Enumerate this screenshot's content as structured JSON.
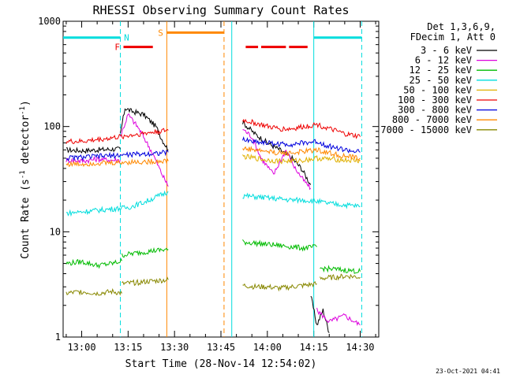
{
  "chart_data": {
    "type": "line",
    "title": "RHESSI Observing Summary Count Rates",
    "xlabel": "Start Time (28-Nov-14 12:54:02)",
    "ylabel_parts": [
      "Count Rate (s",
      "-1",
      " detector",
      "-1",
      ")"
    ],
    "yscale": "log",
    "ylim": [
      1,
      1000
    ],
    "xlim_minutes": [
      -6,
      96
    ],
    "x_ticks": [
      {
        "m": 0,
        "label": "13:00"
      },
      {
        "m": 15,
        "label": "13:15"
      },
      {
        "m": 30,
        "label": "13:30"
      },
      {
        "m": 45,
        "label": "13:45"
      },
      {
        "m": 60,
        "label": "14:00"
      },
      {
        "m": 75,
        "label": "14:15"
      },
      {
        "m": 90,
        "label": "14:30"
      }
    ],
    "y_ticks": [
      {
        "v": 1,
        "label": "1"
      },
      {
        "v": 10,
        "label": "10"
      },
      {
        "v": 100,
        "label": "100"
      },
      {
        "v": 1000,
        "label": "1000"
      }
    ],
    "legend_header": [
      "Det 1,3,6,9,",
      "FDecim 1, Att 0"
    ],
    "legend_placement": "right",
    "series": [
      {
        "name": "3 - 6 keV",
        "color": "#000000",
        "segments": [
          {
            "x": [
              -5,
              0,
              5,
              10,
              12.5
            ],
            "y": [
              60,
              59,
              60,
              61,
              61
            ]
          },
          {
            "x": [
              12.5,
              14,
              16,
              20,
              24,
              26,
              28
            ],
            "y": [
              85,
              150,
              140,
              130,
              100,
              75,
              60
            ]
          },
          {
            "x": [
              52,
              56,
              60,
              64,
              68,
              71,
              74
            ],
            "y": [
              110,
              85,
              70,
              60,
              50,
              40,
              28
            ]
          },
          {
            "x": [
              74,
              76,
              78,
              80
            ],
            "y": [
              2.5,
              1.3,
              1.8,
              1.1
            ]
          }
        ]
      },
      {
        "name": "6 - 12 keV",
        "color": "#dd00dd",
        "segments": [
          {
            "x": [
              -5,
              0,
              5,
              10,
              12.5
            ],
            "y": [
              48,
              47,
              49,
              48,
              48
            ]
          },
          {
            "x": [
              12.5,
              15,
              18,
              20,
              23,
              26,
              28
            ],
            "y": [
              80,
              130,
              100,
              80,
              55,
              35,
              27
            ]
          },
          {
            "x": [
              52,
              55,
              58,
              62,
              66,
              69,
              72,
              74
            ],
            "y": [
              95,
              80,
              50,
              35,
              60,
              40,
              30,
              26
            ]
          },
          {
            "x": [
              76,
              80,
              85,
              90
            ],
            "y": [
              1.8,
              1.4,
              1.6,
              1.3
            ]
          }
        ]
      },
      {
        "name": "12 - 25 keV",
        "color": "#00bb00",
        "segments": [
          {
            "x": [
              -5,
              0,
              5,
              10,
              13
            ],
            "y": [
              5,
              5.2,
              4.8,
              5,
              5.3
            ]
          },
          {
            "x": [
              13,
              18,
              23,
              28
            ],
            "y": [
              6,
              6.3,
              6.6,
              6.8
            ]
          },
          {
            "x": [
              52,
              56,
              60,
              64,
              68,
              72,
              76
            ],
            "y": [
              8,
              7.8,
              7.6,
              7.4,
              7.2,
              7,
              7.2
            ]
          },
          {
            "x": [
              77,
              82,
              86,
              90
            ],
            "y": [
              4.5,
              4.4,
              4.3,
              4.2
            ]
          }
        ]
      },
      {
        "name": "25 - 50 keV",
        "color": "#00dddd",
        "segments": [
          {
            "x": [
              -5,
              0,
              5,
              10,
              15,
              20,
              25,
              28
            ],
            "y": [
              15,
              15.5,
              16,
              16.5,
              17,
              19,
              22,
              24
            ]
          },
          {
            "x": [
              52,
              56,
              60,
              64,
              68,
              72,
              76,
              80,
              85,
              90
            ],
            "y": [
              22,
              21.5,
              21,
              20.5,
              20,
              20,
              19.5,
              18.5,
              18,
              17.5
            ]
          }
        ]
      },
      {
        "name": "50 - 100 keV",
        "color": "#e0b000",
        "segments": [
          {
            "x": [
              52,
              56,
              60,
              64,
              68,
              72,
              76,
              80,
              85,
              90
            ],
            "y": [
              52,
              50,
              48,
              47,
              47,
              48,
              50,
              49,
              48,
              47
            ]
          }
        ]
      },
      {
        "name": "100 - 300 keV",
        "color": "#ee0000",
        "segments": [
          {
            "x": [
              -5,
              0,
              5,
              10,
              15,
              20,
              25,
              28
            ],
            "y": [
              72,
              72,
              75,
              78,
              82,
              86,
              90,
              92
            ]
          },
          {
            "x": [
              52,
              56,
              60,
              64,
              68,
              72,
              76,
              80,
              85,
              90
            ],
            "y": [
              115,
              108,
              100,
              95,
              95,
              100,
              105,
              95,
              85,
              80
            ]
          }
        ]
      },
      {
        "name": "300 - 800 keV",
        "color": "#0000dd",
        "segments": [
          {
            "x": [
              -5,
              0,
              5,
              10,
              15,
              20,
              25,
              28
            ],
            "y": [
              50,
              51,
              52,
              53,
              54,
              55,
              56,
              57
            ]
          },
          {
            "x": [
              52,
              56,
              60,
              64,
              68,
              72,
              76,
              80,
              85,
              90
            ],
            "y": [
              75,
              72,
              70,
              68,
              68,
              70,
              72,
              65,
              60,
              57
            ]
          }
        ]
      },
      {
        "name": "800 - 7000 keV",
        "color": "#ff8800",
        "segments": [
          {
            "x": [
              -5,
              0,
              5,
              10,
              15,
              20,
              25,
              28
            ],
            "y": [
              44,
              44,
              45,
              45,
              46,
              46,
              47,
              47
            ]
          },
          {
            "x": [
              52,
              56,
              60,
              64,
              68,
              72,
              76,
              80,
              85,
              90
            ],
            "y": [
              62,
              60,
              58,
              56,
              56,
              58,
              60,
              56,
              52,
              50
            ]
          }
        ]
      },
      {
        "name": "7000 - 15000 keV",
        "color": "#888800",
        "segments": [
          {
            "x": [
              -5,
              0,
              5,
              10,
              13
            ],
            "y": [
              2.6,
              2.7,
              2.6,
              2.7,
              2.6
            ]
          },
          {
            "x": [
              13,
              18,
              23,
              28
            ],
            "y": [
              3.2,
              3.3,
              3.4,
              3.5
            ]
          },
          {
            "x": [
              52,
              56,
              60,
              64,
              68,
              72,
              76
            ],
            "y": [
              3.1,
              3,
              3,
              2.9,
              3,
              3.1,
              3.2
            ]
          },
          {
            "x": [
              77,
              82,
              86,
              90
            ],
            "y": [
              3.6,
              3.7,
              3.8,
              3.7
            ]
          }
        ]
      }
    ],
    "flags": [
      {
        "label": "N",
        "color": "#00dddd",
        "y": 700,
        "label_x": 14.5,
        "segments": [
          {
            "x": [
              -6,
              12.5
            ]
          },
          {
            "x": [
              75,
              90.5
            ]
          }
        ]
      },
      {
        "label": "F",
        "color": "#ee0000",
        "y": 570,
        "label_x": 11.5,
        "segments": [
          {
            "x": [
              13.5,
              23
            ]
          },
          {
            "x": [
              53,
              57
            ]
          },
          {
            "x": [
              58,
              66
            ]
          },
          {
            "x": [
              67,
              73
            ]
          }
        ]
      },
      {
        "label": "S",
        "color": "#ff8800",
        "y": 780,
        "label_x": 25.5,
        "segments": [
          {
            "x": [
              27.5,
              46
            ]
          }
        ]
      }
    ],
    "vertical_markers": [
      {
        "m": 12.5,
        "color": "#00dddd",
        "style": "dashed"
      },
      {
        "m": 27.5,
        "color": "#ff8800",
        "style": "solid"
      },
      {
        "m": 46,
        "color": "#ff8800",
        "style": "dashed"
      },
      {
        "m": 48.5,
        "color": "#00dddd",
        "style": "solid"
      },
      {
        "m": 75,
        "color": "#00dddd",
        "style": "solid"
      },
      {
        "m": 90.5,
        "color": "#00dddd",
        "style": "dashed"
      }
    ]
  },
  "footer": {
    "datestamp": "23-Oct-2021 04:41"
  }
}
